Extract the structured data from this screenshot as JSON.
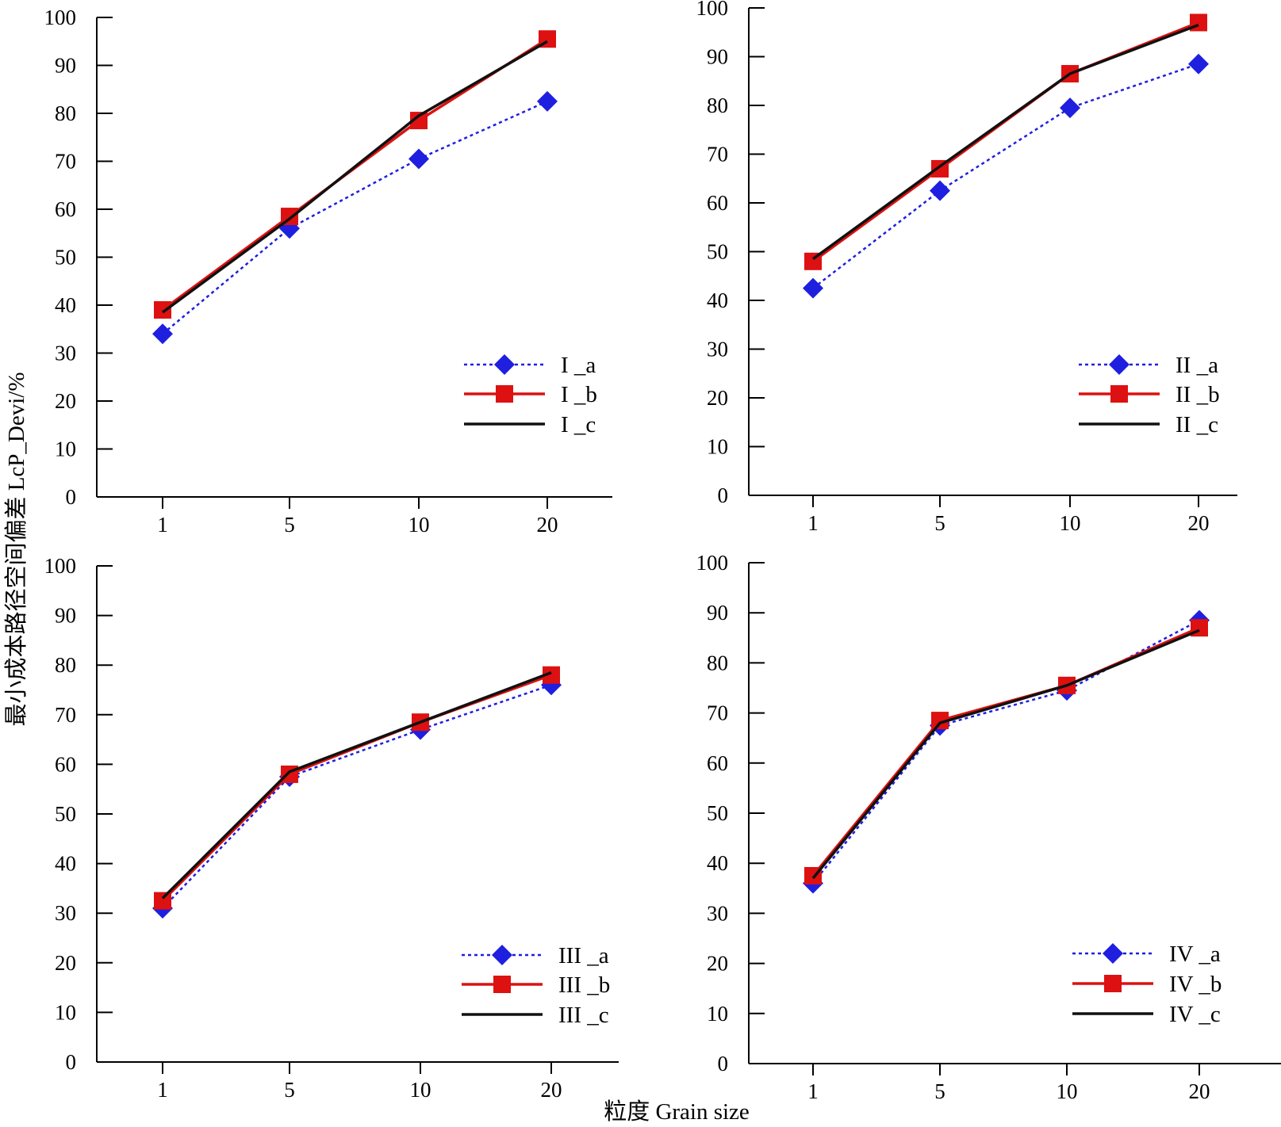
{
  "figure": {
    "ylabel": "最小成本路径空间偏差 LcP_Devi/%",
    "xlabel": "粒度 Grain size"
  },
  "styles": {
    "a": {
      "color": "#1f1fe0",
      "dash": "dotted",
      "marker": "diamond"
    },
    "b": {
      "color": "#dd1111",
      "dash": "solid",
      "marker": "square"
    },
    "c": {
      "color": "#111111",
      "dash": "solid",
      "marker": "none"
    }
  },
  "chart_data": [
    {
      "type": "line",
      "categories": [
        "1",
        "5",
        "10",
        "20"
      ],
      "ylim": [
        0,
        100
      ],
      "yticks": [
        "0",
        "10",
        "20",
        "30",
        "40",
        "50",
        "60",
        "70",
        "80",
        "90",
        "100"
      ],
      "legend_position": "bottom-right",
      "series": [
        {
          "name": "I _a",
          "style": "a",
          "values": [
            34,
            56,
            70.5,
            82.5
          ]
        },
        {
          "name": "I _b",
          "style": "b",
          "values": [
            39,
            58.5,
            78.5,
            95.5
          ]
        },
        {
          "name": "I _c",
          "style": "c",
          "values": [
            38.5,
            58,
            79.5,
            95
          ]
        }
      ]
    },
    {
      "type": "line",
      "categories": [
        "1",
        "5",
        "10",
        "20"
      ],
      "ylim": [
        0,
        100
      ],
      "yticks": [
        "0",
        "10",
        "20",
        "30",
        "40",
        "50",
        "60",
        "70",
        "80",
        "90",
        "100"
      ],
      "legend_position": "bottom-right",
      "series": [
        {
          "name": "II _a",
          "style": "a",
          "values": [
            42.5,
            62.5,
            79.5,
            88.5
          ]
        },
        {
          "name": "II _b",
          "style": "b",
          "values": [
            48,
            67,
            86.5,
            97
          ]
        },
        {
          "name": "II _c",
          "style": "c",
          "values": [
            48.5,
            67.5,
            86.5,
            96.5
          ]
        }
      ]
    },
    {
      "type": "line",
      "categories": [
        "1",
        "5",
        "10",
        "20"
      ],
      "ylim": [
        0,
        100
      ],
      "yticks": [
        "0",
        "10",
        "20",
        "30",
        "40",
        "50",
        "60",
        "70",
        "80",
        "90",
        "100"
      ],
      "legend_position": "bottom-right",
      "series": [
        {
          "name": "III _a",
          "style": "a",
          "values": [
            31,
            57.5,
            67,
            76
          ]
        },
        {
          "name": "III _b",
          "style": "b",
          "values": [
            32.5,
            58,
            68.5,
            78
          ]
        },
        {
          "name": "III _c",
          "style": "c",
          "values": [
            33,
            58.5,
            68.5,
            78.5
          ]
        }
      ]
    },
    {
      "type": "line",
      "categories": [
        "1",
        "5",
        "10",
        "20"
      ],
      "ylim": [
        0,
        100
      ],
      "yticks": [
        "0",
        "10",
        "20",
        "30",
        "40",
        "50",
        "60",
        "70",
        "80",
        "90",
        "100"
      ],
      "legend_position": "bottom-right",
      "series": [
        {
          "name": "IV _a",
          "style": "a",
          "values": [
            36,
            67.5,
            74.5,
            88.5
          ]
        },
        {
          "name": "IV _b",
          "style": "b",
          "values": [
            37.5,
            68.5,
            75.5,
            87
          ]
        },
        {
          "name": "IV _c",
          "style": "c",
          "values": [
            37,
            68,
            75.5,
            86.5
          ]
        }
      ]
    }
  ]
}
